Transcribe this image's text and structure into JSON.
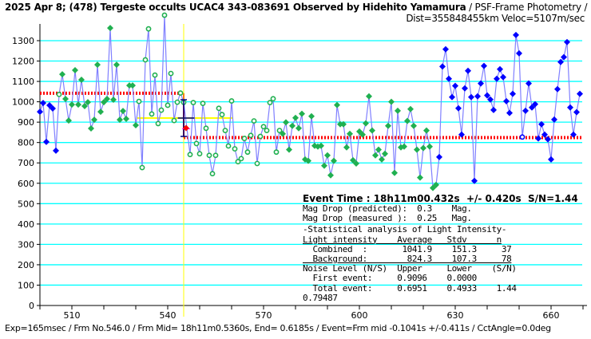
{
  "title": {
    "main": "2025 Apr 8; (478) Tergeste occults UCAC4 343-083691 Observed by Hidehito Yamamura",
    "method": " / PSF-Frame Photometry /",
    "dist": "Dist=355848455km Veloc=5107m/sec"
  },
  "stats": {
    "event_time": "Event Time : 18h11m00.432s  +/- 0.420s  S/N=1.44",
    "lines": [
      "Mag Drop (predicted):  0.3    Mag.",
      "Mag Drop (measured ):  0.25   Mag.",
      "-Statistical analysis of Light Intensity-",
      "Light intensity    Average   Stdv      n",
      "  Combined  :       1041.9    151.3     37",
      "  Background:        824.3    107.3     78",
      "Noise Level (N/S)  Upper     Lower    (S/N)",
      "  First event:     0.9096    0.0000",
      "  Total event:     0.6951    0.4933    1.44",
      "0.79487"
    ]
  },
  "footer": "Exp=165msec / Frm No.546.0 / Frm Mid= 18h11m0.5360s,  End= 0.6185s / Event=Frm mid -0.1041s +/-0.411s / CctAngle=0.0deg",
  "colors": {
    "grid": "#00ffff",
    "line": "#8080ff",
    "blue": "#0000ff",
    "green": "#20b050",
    "level": "#ff0000",
    "event": "#ffff00",
    "errbar": "#000080",
    "marker": "#ff0000"
  },
  "chart_data": {
    "type": "line",
    "xlabel": "",
    "ylabel": "",
    "xlim": [
      500,
      669.5
    ],
    "ylim": [
      0,
      1380
    ],
    "xticks": [
      510,
      540,
      570,
      600,
      630,
      660
    ],
    "yticks": [
      0,
      100,
      200,
      300,
      400,
      500,
      600,
      700,
      800,
      900,
      1000,
      1100,
      1200,
      1300
    ],
    "grid": true,
    "x_start": 500,
    "values": [
      951,
      994,
      803,
      983,
      967,
      760,
      1036,
      1135,
      1014,
      908,
      986,
      1155,
      986,
      1108,
      979,
      998,
      869,
      912,
      1182,
      951,
      998,
      1014,
      1362,
      1010,
      1182,
      912,
      955,
      916,
      1080,
      1080,
      885,
      1002,
      677,
      1206,
      1358,
      940,
      1131,
      893,
      959,
      1425,
      983,
      1139,
      908,
      998,
      1043,
      997,
      871,
      741,
      996,
      795,
      745,
      992,
      870,
      737,
      647,
      737,
      968,
      937,
      859,
      783,
      1004,
      769,
      706,
      721,
      820,
      753,
      835,
      906,
      697,
      830,
      878,
      859,
      996,
      1015,
      753,
      859,
      843,
      899,
      765,
      882,
      921,
      870,
      941,
      717,
      710,
      929,
      784,
      780,
      784,
      686,
      737,
      639,
      710,
      984,
      890,
      890,
      776,
      843,
      713,
      697,
      854,
      839,
      894,
      1027,
      859,
      737,
      765,
      717,
      745,
      882,
      1000,
      651,
      956,
      776,
      780,
      906,
      964,
      882,
      765,
      628,
      773,
      859,
      780,
      577,
      592,
      729,
      1173,
      1258,
      1113,
      1023,
      1078,
      968,
      839,
      1066,
      1152,
      1023,
      612,
      1027,
      1090,
      1176,
      1031,
      1011,
      960,
      1113,
      1160,
      1121,
      1003,
      945,
      1039,
      1328,
      1238,
      827,
      956,
      1090,
      972,
      988,
      820,
      890,
      839,
      816,
      717,
      913,
      1062,
      1195,
      1219,
      1293,
      972,
      839,
      949,
      1039
    ],
    "blue_before_frame": 506,
    "blue_from_frame": 625,
    "hollow_frames": [
      [
        531,
        575
      ]
    ],
    "levels": {
      "upper": 1041.9,
      "background": 824.3
    },
    "event_frame": 545.75,
    "event_value": 871,
    "event_error_frames": 2.6,
    "predicted_drop_level": 920,
    "predicted_span_frames": [
      530.5,
      560.5
    ]
  }
}
